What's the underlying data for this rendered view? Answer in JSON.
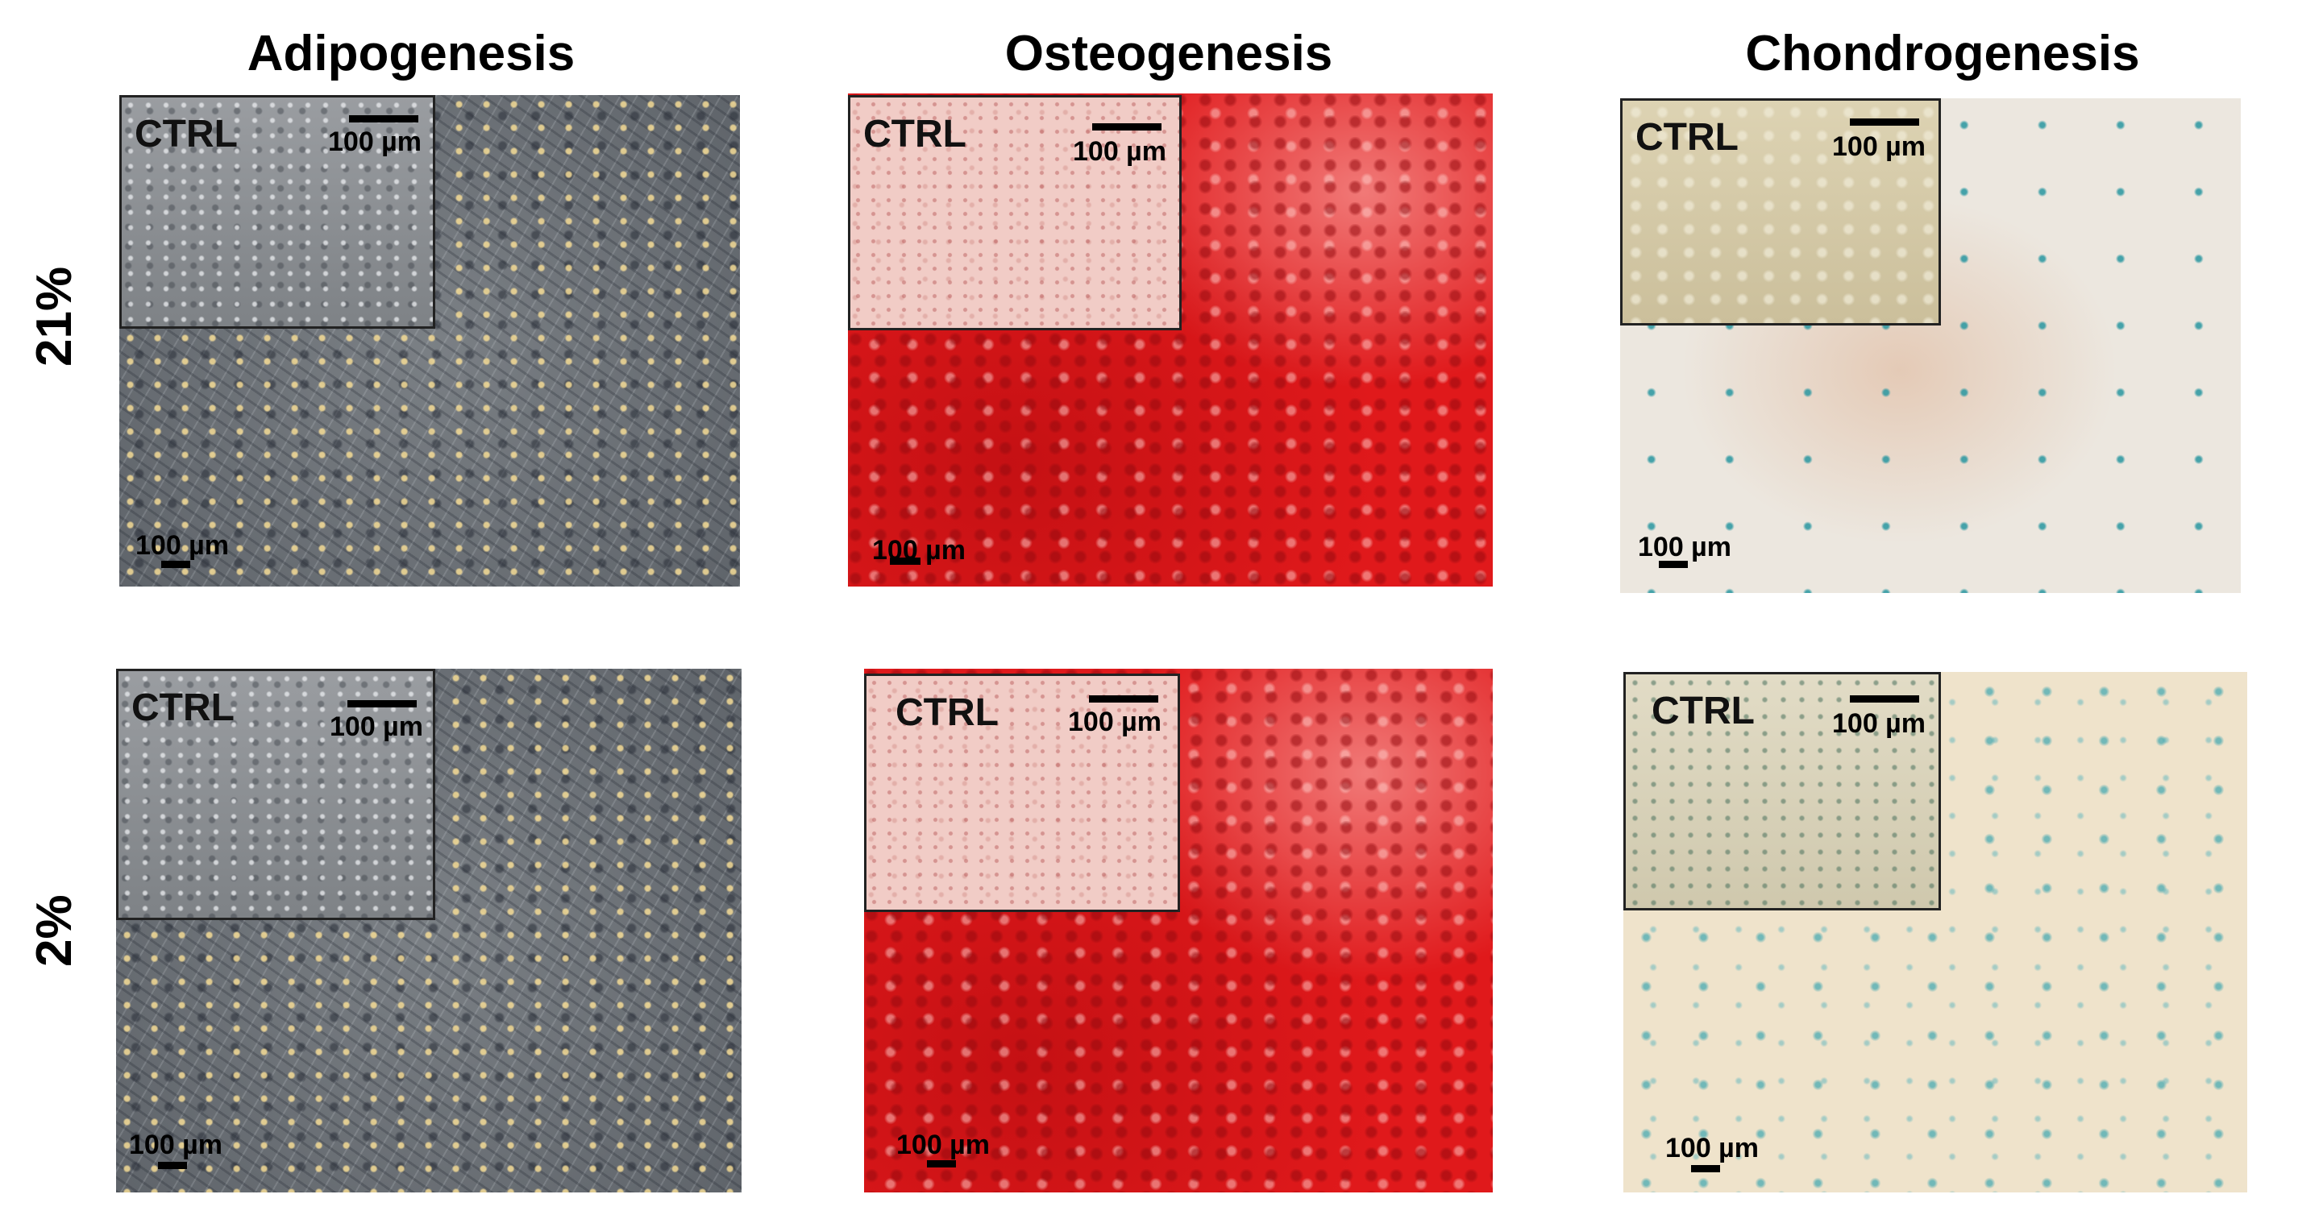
{
  "columns": {
    "adipogenesis": "Adipogenesis",
    "osteogenesis": "Osteogenesis",
    "chondrogenesis": "Chondrogenesis"
  },
  "rows": {
    "top": "21%",
    "bottom": "2%"
  },
  "inset_label": "CTRL",
  "scale_bar_label": "100 µm",
  "stain_colors": {
    "adipogenesis_oil_red": "#d98a2b",
    "osteogenesis_alizarin_red": "#e0191b",
    "chondrogenesis_alcian_blue": "#2f9aa6"
  }
}
